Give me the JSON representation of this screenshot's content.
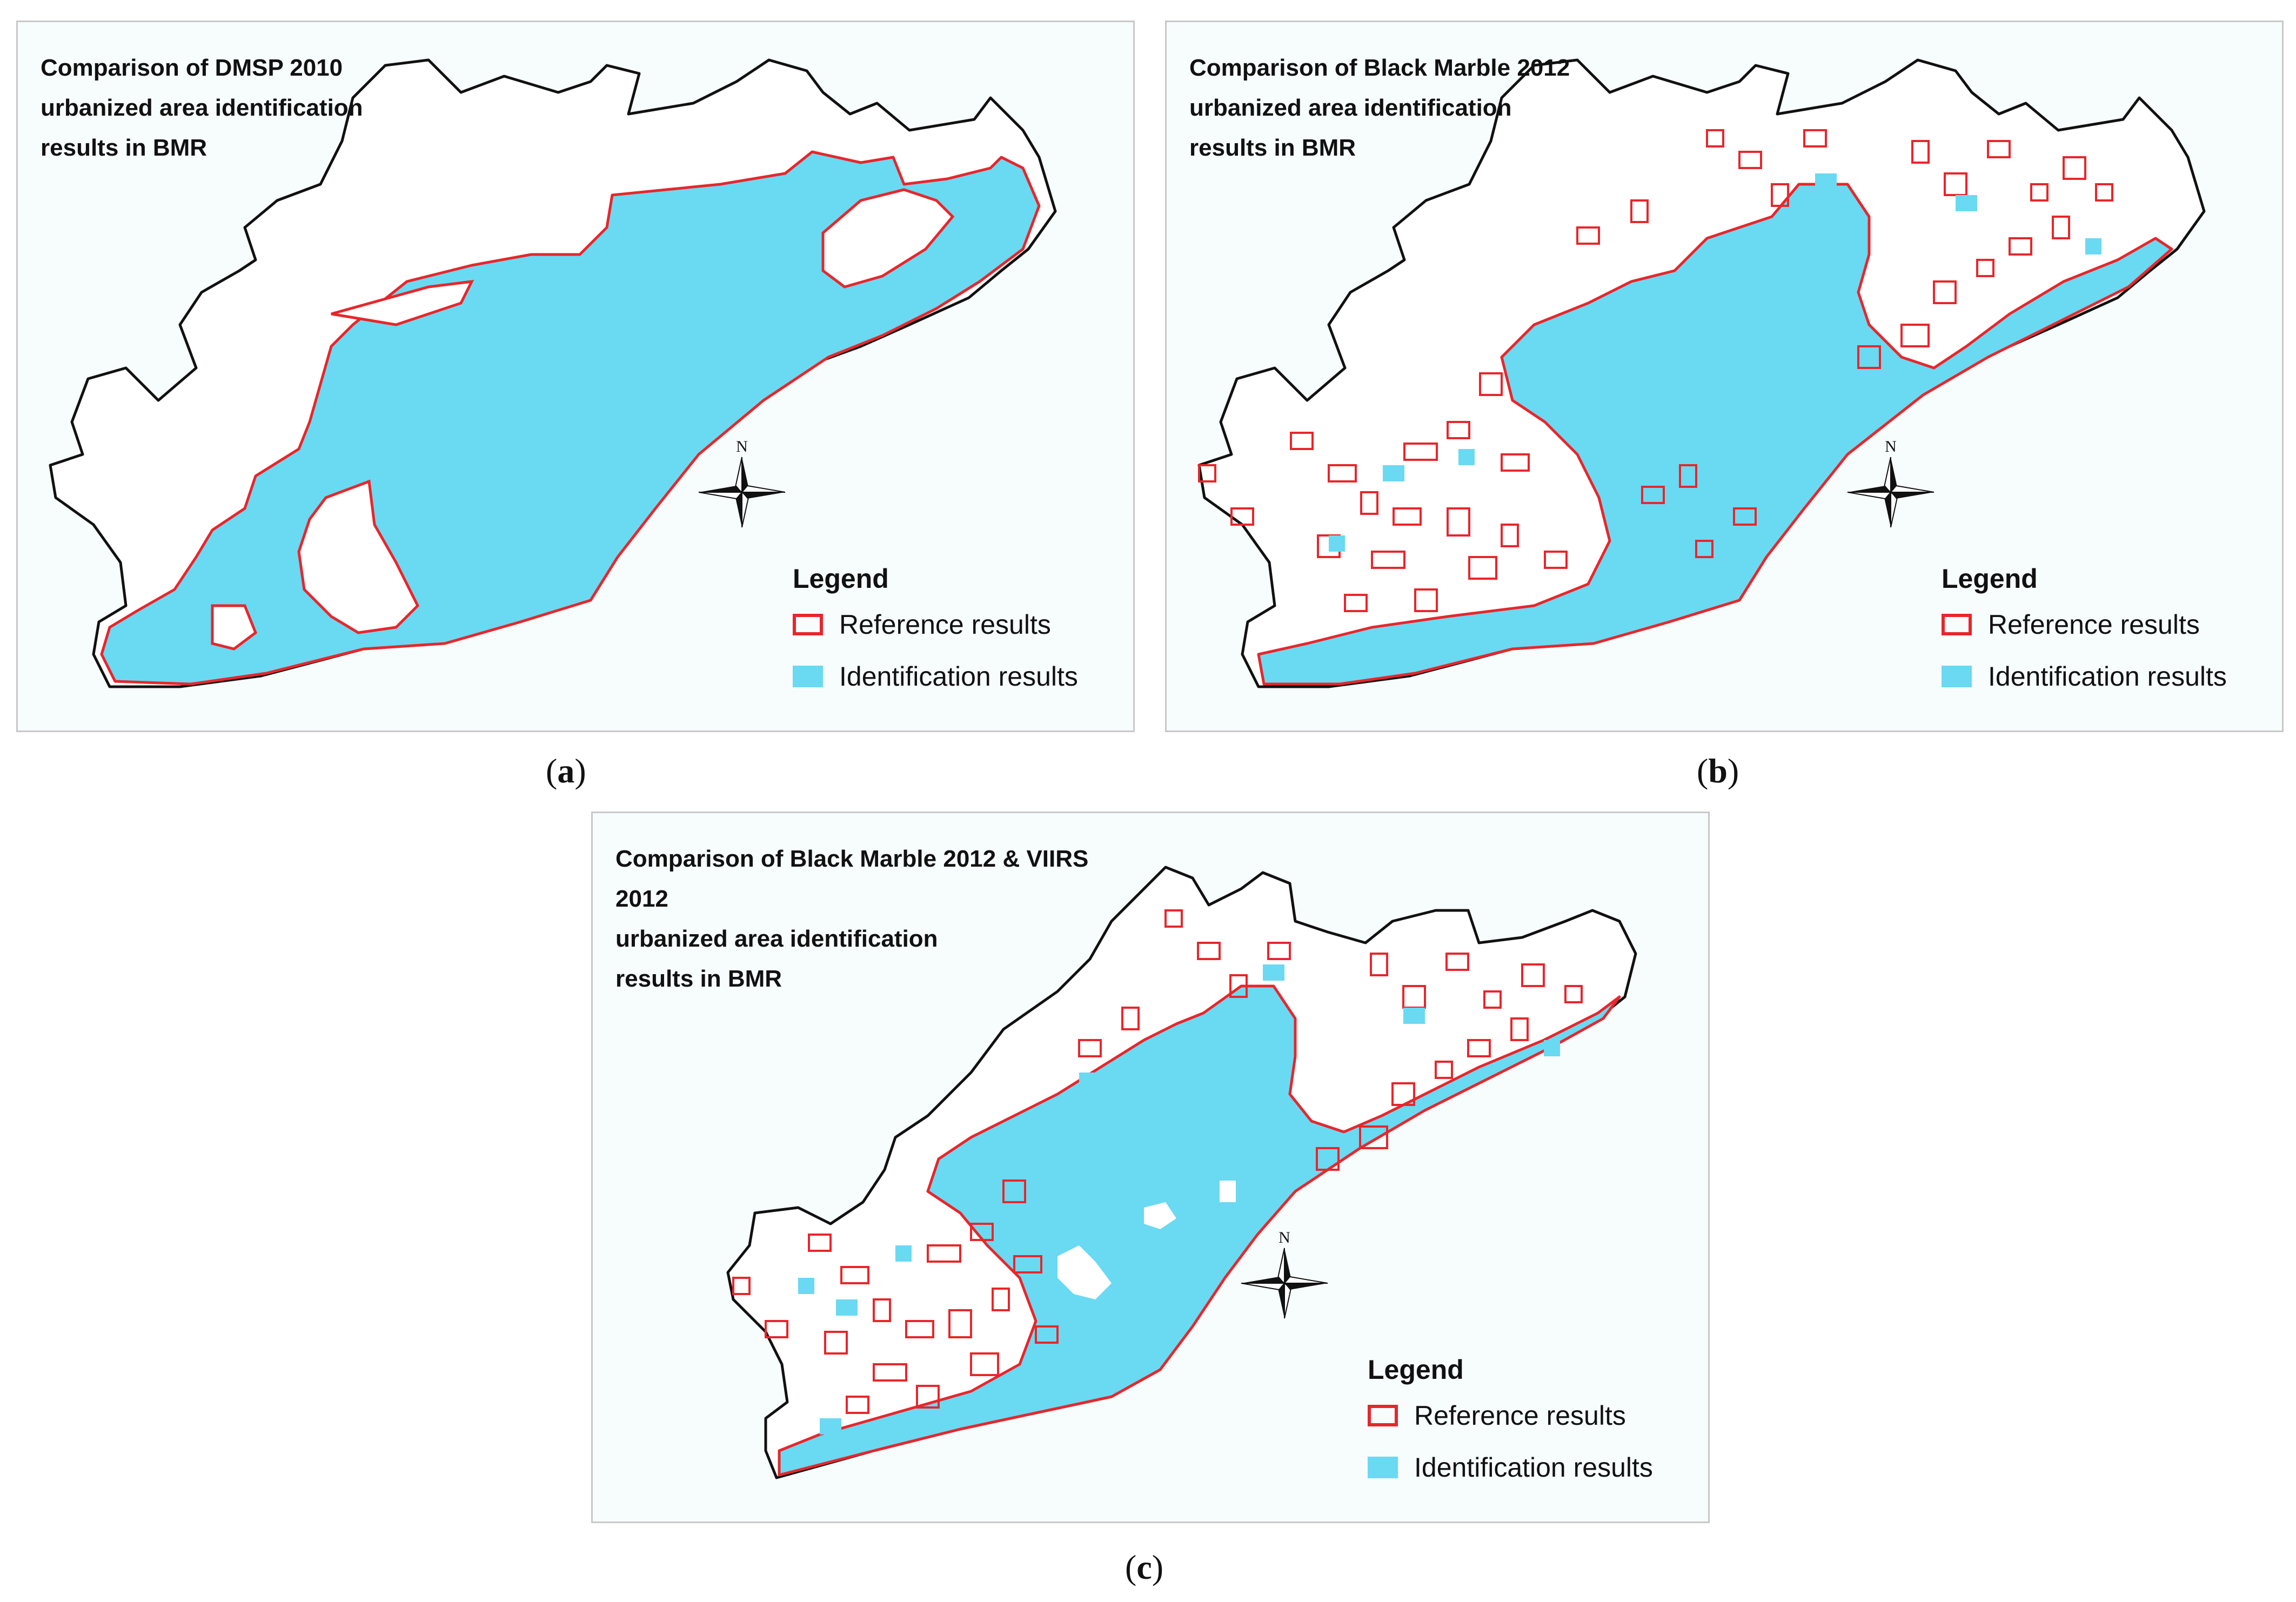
{
  "panels": [
    {
      "id": "a",
      "title": "Comparison of DMSP 2010\nurbanized area identification\nresults in BMR",
      "caption_letter": "a",
      "north_label": "N",
      "legend": {
        "title": "Legend",
        "reference_label": "Reference results",
        "identification_label": "Identification results"
      }
    },
    {
      "id": "b",
      "title": "Comparison of Black Marble 2012\nurbanized area identification\nresults in BMR",
      "caption_letter": "b",
      "north_label": "N",
      "legend": {
        "title": "Legend",
        "reference_label": "Reference results",
        "identification_label": "Identification results"
      }
    },
    {
      "id": "c",
      "title": "Comparison of Black Marble 2012 & VIIRS 2012\nurbanized area identification\nresults in BMR",
      "caption_letter": "c",
      "north_label": "N",
      "legend": {
        "title": "Legend",
        "reference_label": "Reference results",
        "identification_label": "Identification results"
      }
    }
  ],
  "colors": {
    "reference_outline": "#e8262b",
    "identification_fill": "#6ad9f2",
    "boundary": "#111111",
    "panel_background": "#f7fcfd"
  }
}
